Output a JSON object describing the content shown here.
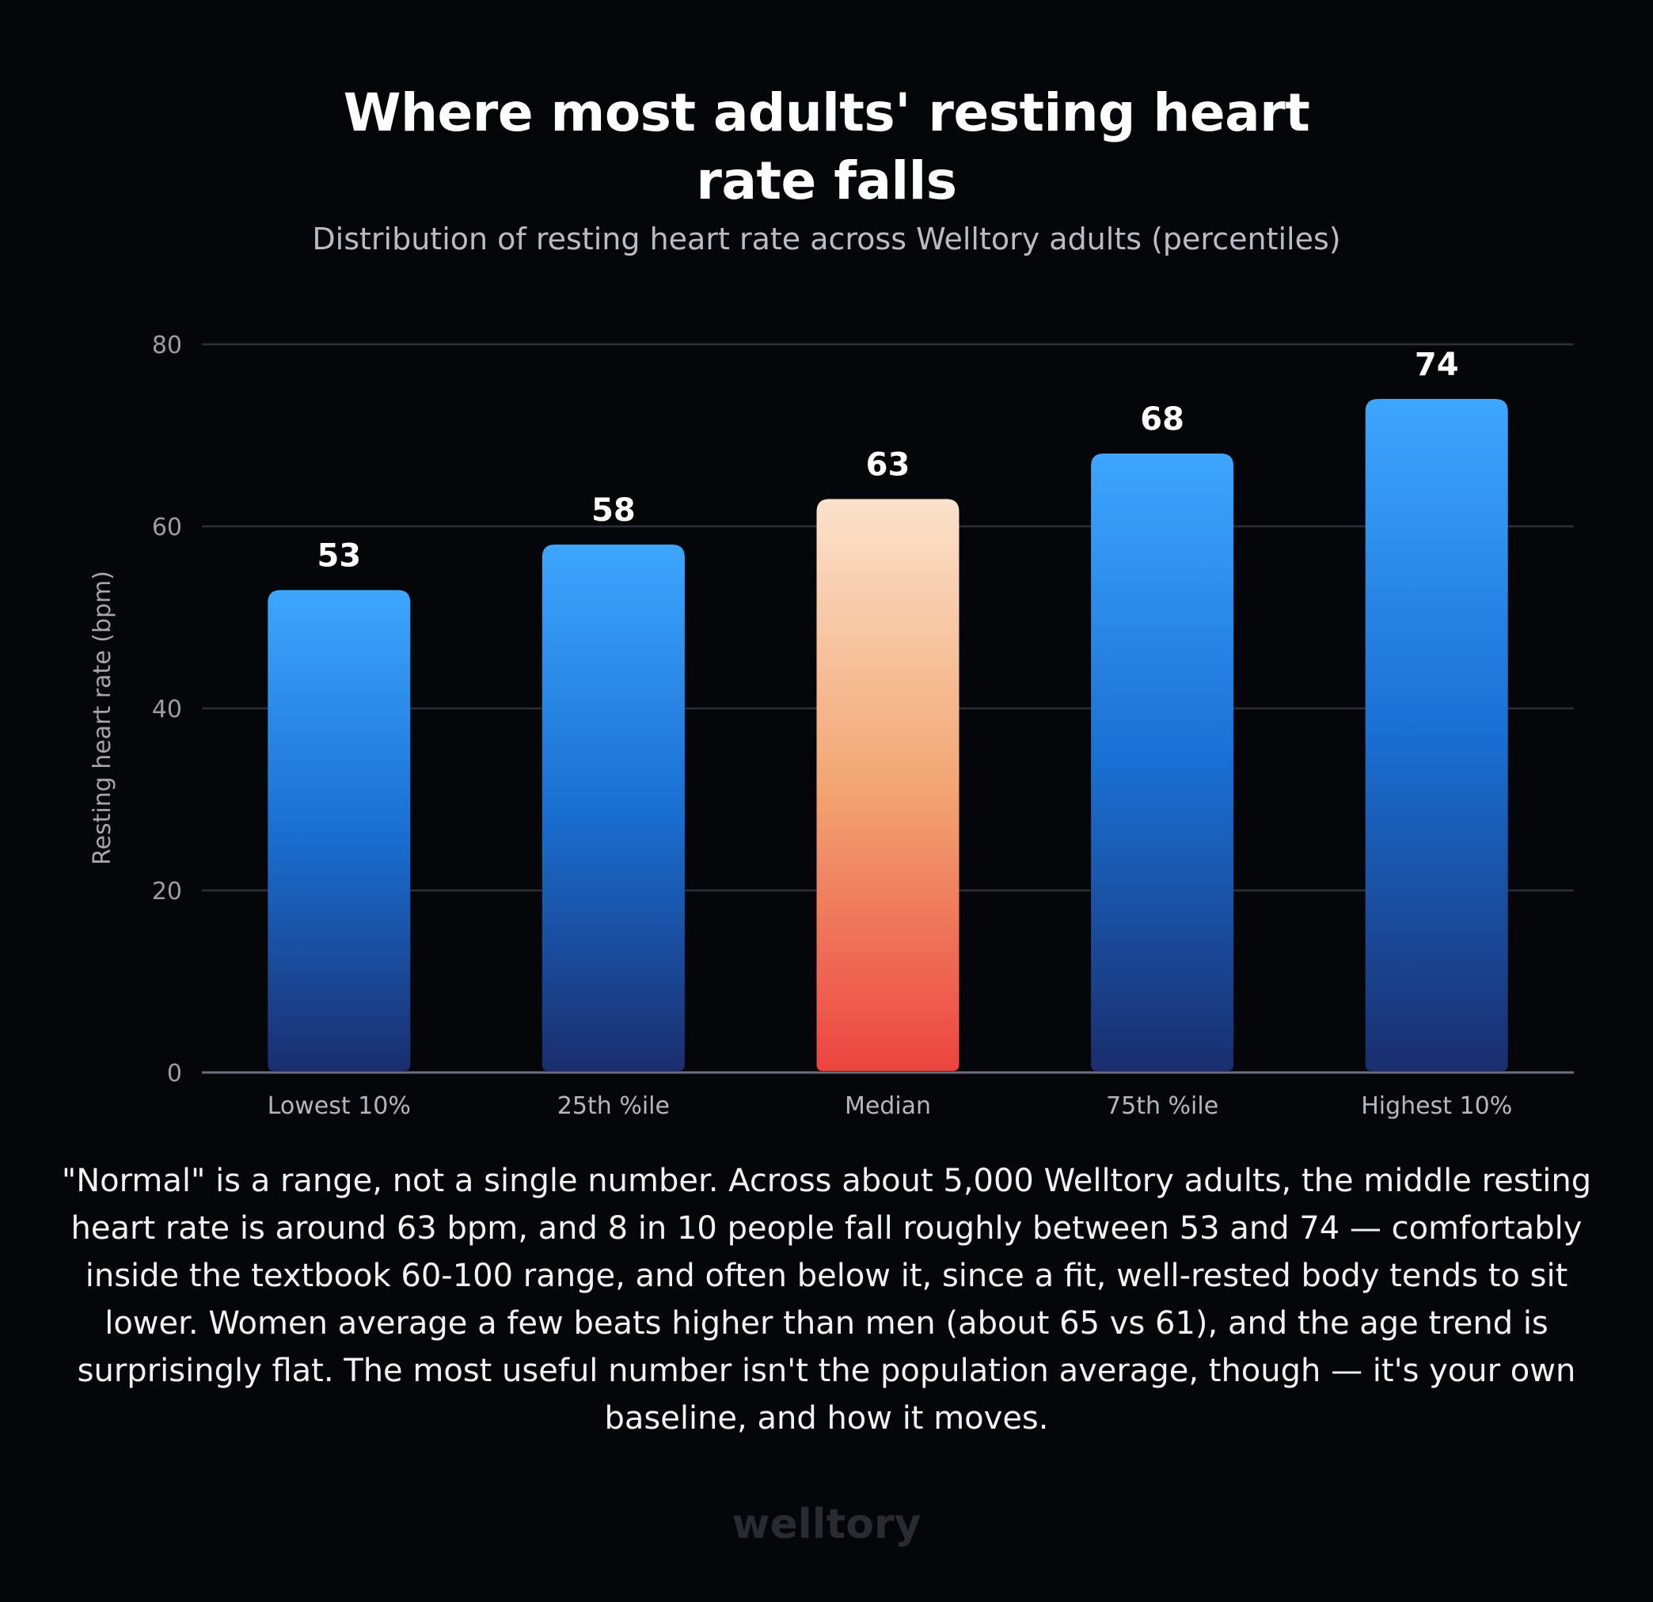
{
  "title_lines": [
    "Where most adults' resting heart",
    "rate falls"
  ],
  "subtitle": "Distribution of resting heart rate across Welltory adults (percentiles)",
  "description": "\"Normal\" is a range, not a single number. Across about 5,000 Welltory adults, the middle resting heart rate is around 63 bpm, and 8 in 10 people fall roughly between 53 and 74 — comfortably inside the textbook 60-100 range, and often below it, since a fit, well-rested body tends to sit lower. Women average a few beats higher than men (about 65 vs 61), and the age trend is surprisingly flat. The most useful number isn't the population average, though — it's your own baseline, and how it moves.",
  "logo": "welltory",
  "colors": {
    "background": "#05060a",
    "bar_top": "#3ea6ff",
    "bar_mid": "#1a6fd3",
    "bar_bottom": "#1a2e6e",
    "highlight_top": "#fbe2cc",
    "highlight_mid": "#f2a673",
    "highlight_bottom": "#ec4440",
    "grid": "#2e3038",
    "axis": "#6d6f78"
  },
  "chart_data": {
    "type": "bar",
    "title": "Where most adults' resting heart rate falls",
    "subtitle": "Distribution of resting heart rate across Welltory adults (percentiles)",
    "categories": [
      "Lowest 10%",
      "25th %ile",
      "Median",
      "75th %ile",
      "Highest 10%"
    ],
    "values": [
      53,
      58,
      63,
      68,
      74
    ],
    "data_labels": [
      "53",
      "58",
      "63",
      "68",
      "74"
    ],
    "highlight_category": "Median",
    "xlabel": "",
    "ylabel": "Resting heart rate (bpm)",
    "ylim": [
      0,
      80
    ],
    "yticks": [
      0,
      20,
      40,
      60,
      80
    ],
    "ytick_labels": [
      "0",
      "20",
      "40",
      "60",
      "80"
    ],
    "grid": true,
    "legend": "none"
  }
}
